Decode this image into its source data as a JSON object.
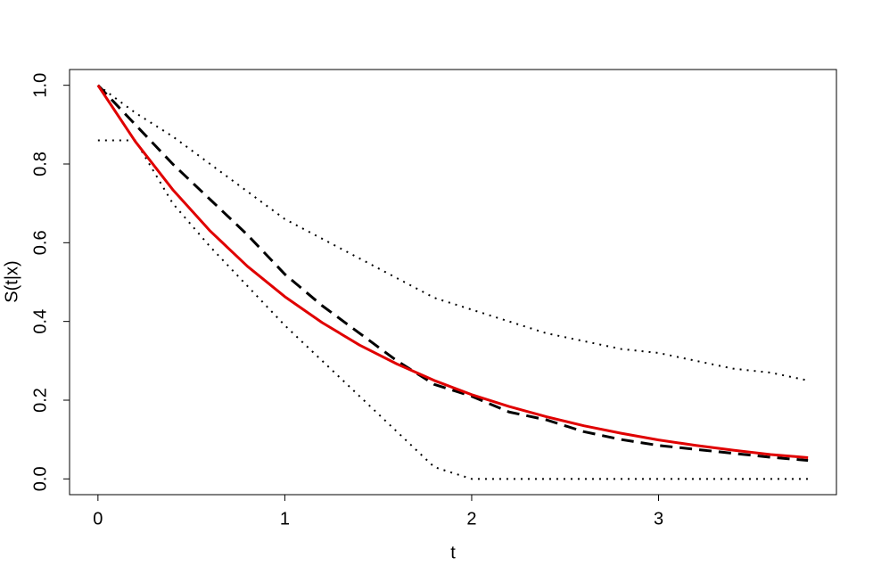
{
  "chart_data": {
    "type": "line",
    "x_label": "t",
    "y_label": "S(t|x)",
    "x": [
      0,
      0.2,
      0.4,
      0.6,
      0.8,
      1.0,
      1.2,
      1.4,
      1.6,
      1.8,
      2.0,
      2.2,
      2.4,
      2.6,
      2.8,
      3.0,
      3.2,
      3.4,
      3.6,
      3.8
    ],
    "series": [
      {
        "color": "#000000",
        "dash": "2,6",
        "width": 2,
        "values": [
          1.0,
          0.93,
          0.87,
          0.8,
          0.73,
          0.66,
          0.61,
          0.56,
          0.51,
          0.46,
          0.43,
          0.4,
          0.37,
          0.35,
          0.33,
          0.32,
          0.3,
          0.28,
          0.27,
          0.25
        ]
      },
      {
        "color": "#000000",
        "dash": "2,6",
        "width": 2,
        "values": [
          0.86,
          0.86,
          0.7,
          0.59,
          0.49,
          0.39,
          0.3,
          0.21,
          0.12,
          0.03,
          0,
          0,
          0,
          0,
          0,
          0,
          0,
          0,
          0,
          0
        ]
      },
      {
        "color": "#000000",
        "dash": "14,8",
        "width": 3,
        "values": [
          1.0,
          0.9,
          0.8,
          0.71,
          0.62,
          0.52,
          0.44,
          0.37,
          0.3,
          0.24,
          0.21,
          0.17,
          0.15,
          0.12,
          0.1,
          0.085,
          0.075,
          0.065,
          0.055,
          0.047
        ]
      },
      {
        "color": "#e00000",
        "dash": "none",
        "width": 3,
        "values": [
          1.0,
          0.857,
          0.735,
          0.63,
          0.54,
          0.463,
          0.397,
          0.34,
          0.292,
          0.25,
          0.214,
          0.184,
          0.158,
          0.135,
          0.116,
          0.099,
          0.085,
          0.073,
          0.062,
          0.054
        ]
      }
    ],
    "xlim": [
      -0.152,
      3.952
    ],
    "ylim": [
      -0.04,
      1.04
    ],
    "xticks": [
      0,
      1,
      2,
      3
    ],
    "yticks": [
      {
        "value": 0,
        "label": "0.0"
      },
      0.2,
      0.4,
      0.6,
      0.8,
      {
        "value": 1,
        "label": "1.0"
      }
    ]
  }
}
